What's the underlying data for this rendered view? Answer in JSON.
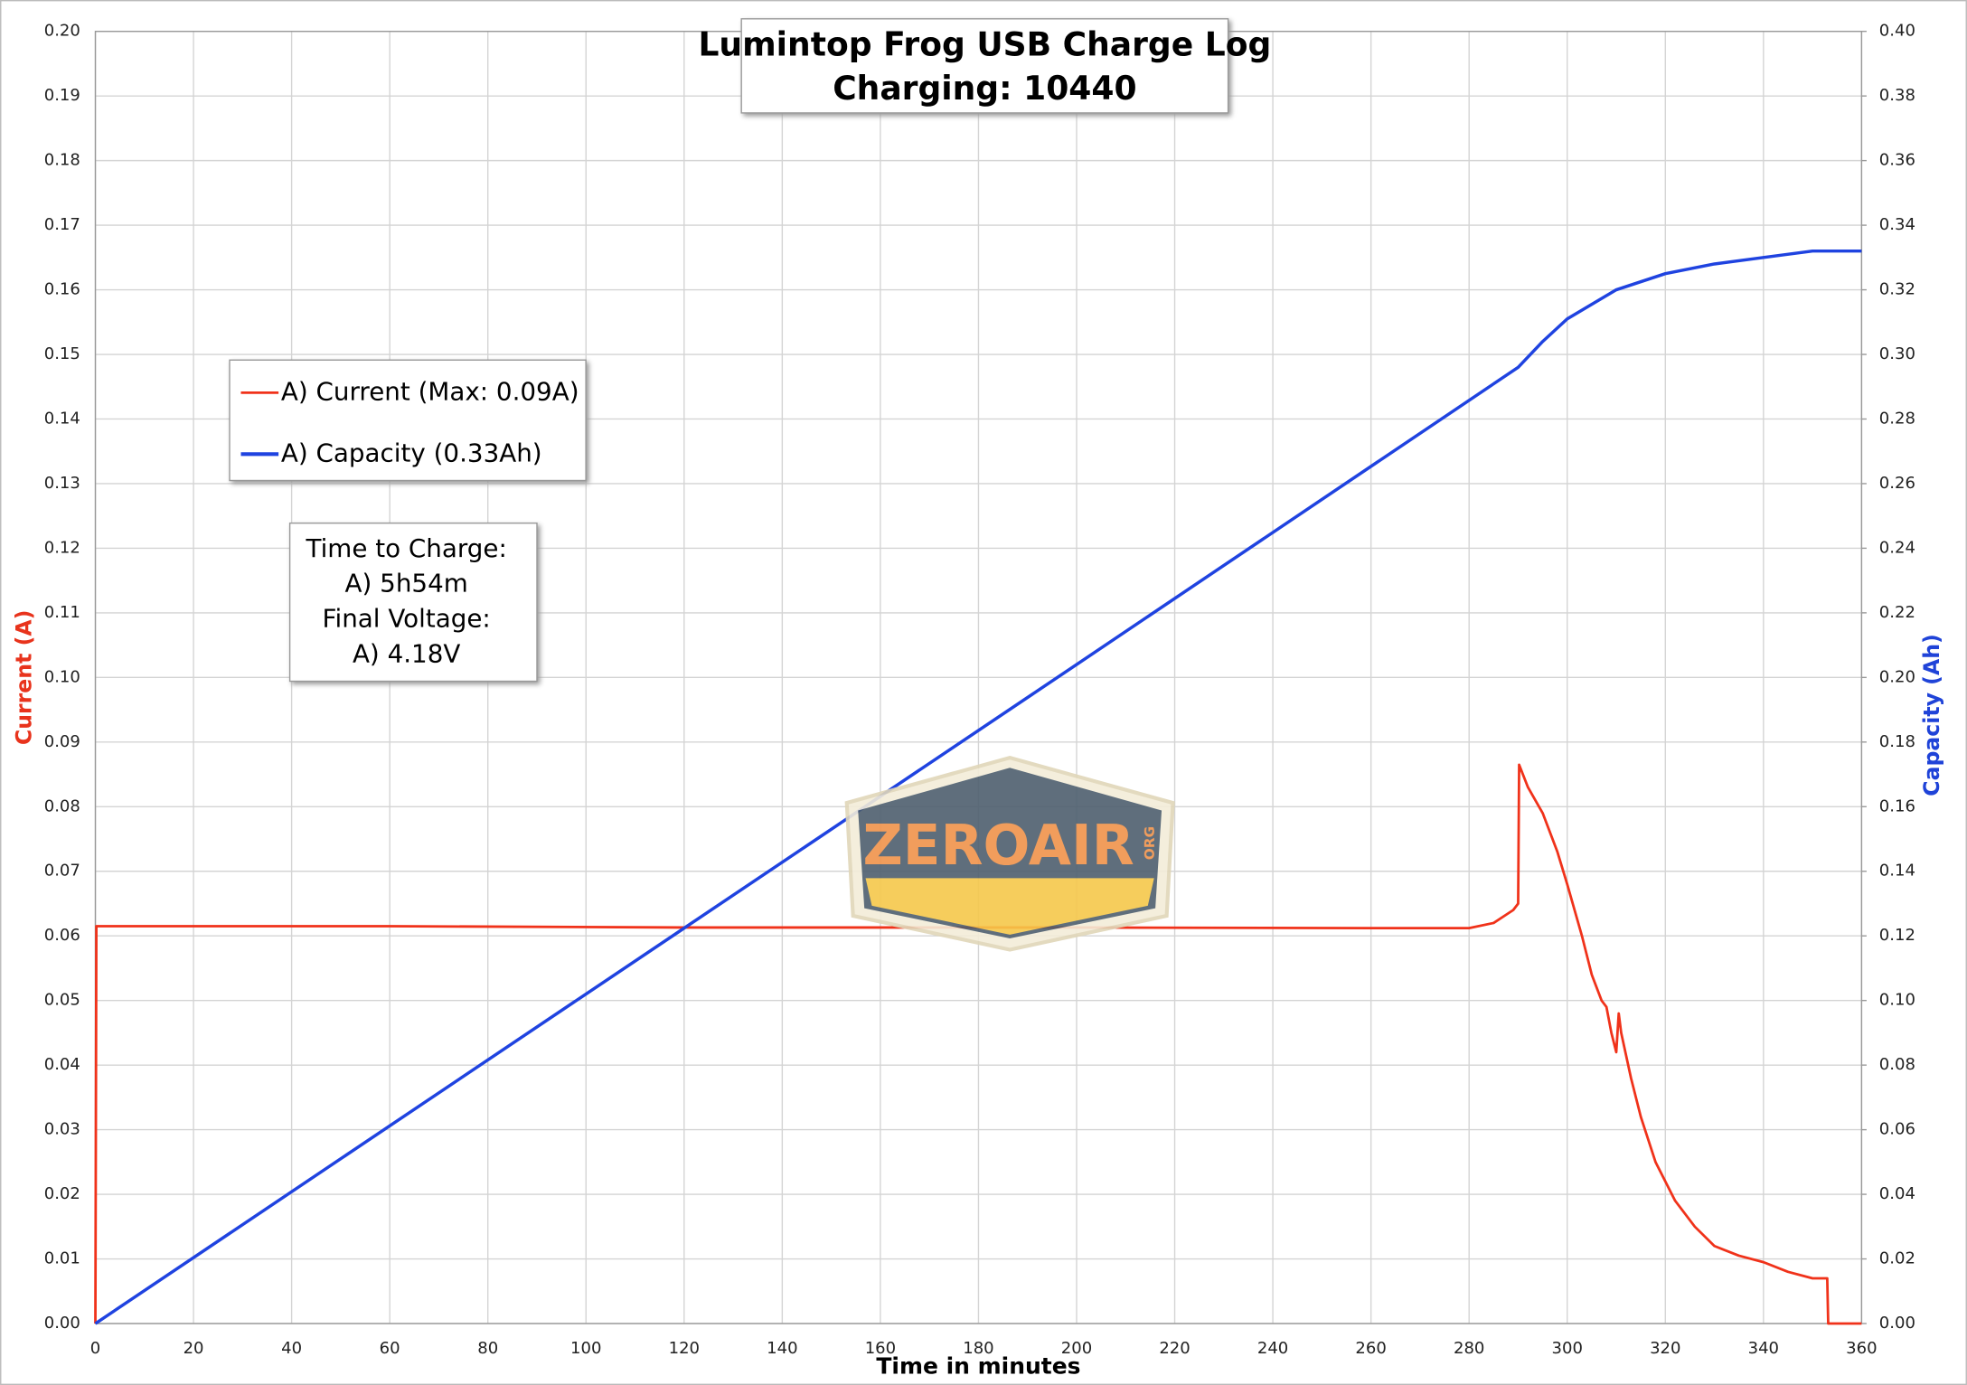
{
  "chart_data": {
    "type": "line",
    "title": "Lumintop Frog USB Charge Log",
    "subtitle": "Charging: 10440",
    "x_label": "Time in minutes",
    "y_label": "Current (A)",
    "y2_label": "Capacity (Ah)",
    "xlim": [
      0,
      360
    ],
    "xticks": [
      0,
      20,
      40,
      60,
      80,
      100,
      120,
      140,
      160,
      180,
      200,
      220,
      240,
      260,
      280,
      300,
      320,
      340,
      360
    ],
    "ylim": [
      0,
      0.2
    ],
    "yticks": [
      {
        "value": 0,
        "label": "0.00"
      },
      {
        "value": 0.01,
        "label": "0.01"
      },
      {
        "value": 0.02,
        "label": "0.02"
      },
      {
        "value": 0.03,
        "label": "0.03"
      },
      {
        "value": 0.04,
        "label": "0.04"
      },
      {
        "value": 0.05,
        "label": "0.05"
      },
      {
        "value": 0.06,
        "label": "0.06"
      },
      {
        "value": 0.07,
        "label": "0.07"
      },
      {
        "value": 0.08,
        "label": "0.08"
      },
      {
        "value": 0.09,
        "label": "0.09"
      },
      {
        "value": 0.1,
        "label": "0.10"
      },
      {
        "value": 0.11,
        "label": "0.11"
      },
      {
        "value": 0.12,
        "label": "0.12"
      },
      {
        "value": 0.13,
        "label": "0.13"
      },
      {
        "value": 0.14,
        "label": "0.14"
      },
      {
        "value": 0.15,
        "label": "0.15"
      },
      {
        "value": 0.16,
        "label": "0.16"
      },
      {
        "value": 0.17,
        "label": "0.17"
      },
      {
        "value": 0.18,
        "label": "0.18"
      },
      {
        "value": 0.19,
        "label": "0.19"
      },
      {
        "value": 0.2,
        "label": "0.20"
      }
    ],
    "y2lim": [
      0,
      0.4
    ],
    "y2ticks": [
      {
        "value": 0,
        "label": "0.00"
      },
      {
        "value": 0.02,
        "label": "0.02"
      },
      {
        "value": 0.04,
        "label": "0.04"
      },
      {
        "value": 0.06,
        "label": "0.06"
      },
      {
        "value": 0.08,
        "label": "0.08"
      },
      {
        "value": 0.1,
        "label": "0.10"
      },
      {
        "value": 0.12,
        "label": "0.12"
      },
      {
        "value": 0.14,
        "label": "0.14"
      },
      {
        "value": 0.16,
        "label": "0.16"
      },
      {
        "value": 0.18,
        "label": "0.18"
      },
      {
        "value": 0.2,
        "label": "0.20"
      },
      {
        "value": 0.22,
        "label": "0.22"
      },
      {
        "value": 0.24,
        "label": "0.24"
      },
      {
        "value": 0.26,
        "label": "0.26"
      },
      {
        "value": 0.28,
        "label": "0.28"
      },
      {
        "value": 0.3,
        "label": "0.30"
      },
      {
        "value": 0.32,
        "label": "0.32"
      },
      {
        "value": 0.34,
        "label": "0.34"
      },
      {
        "value": 0.36,
        "label": "0.36"
      },
      {
        "value": 0.38,
        "label": "0.38"
      },
      {
        "value": 0.4,
        "label": "0.40"
      }
    ],
    "grid": true,
    "y_label_color": "#e8331c",
    "y2_label_color": "#1f43d8",
    "series": [
      {
        "name": "A) Current (Max: 0.09A)",
        "color": "#f0321a",
        "axis": "y",
        "x": [
          0,
          0.2,
          60,
          120,
          200,
          260,
          280,
          285,
          289,
          290,
          290.2,
          292,
          295,
          298,
          300,
          303,
          305,
          307,
          308,
          309,
          310,
          310.5,
          311,
          313,
          315,
          318,
          322,
          326,
          330,
          335,
          340,
          345,
          350,
          353,
          353.2,
          360
        ],
        "values": [
          0,
          0.0615,
          0.0615,
          0.0613,
          0.0613,
          0.0612,
          0.0612,
          0.062,
          0.064,
          0.065,
          0.0865,
          0.083,
          0.079,
          0.073,
          0.068,
          0.06,
          0.054,
          0.05,
          0.049,
          0.045,
          0.042,
          0.048,
          0.045,
          0.038,
          0.032,
          0.025,
          0.019,
          0.015,
          0.012,
          0.0105,
          0.0095,
          0.008,
          0.007,
          0.007,
          0,
          0
        ]
      },
      {
        "name": "A) Capacity (0.33Ah)",
        "color": "#1f43e0",
        "axis": "y2",
        "x": [
          0,
          100,
          200,
          290,
          295,
          300,
          310,
          320,
          330,
          340,
          350,
          353,
          360
        ],
        "values": [
          0,
          0.102,
          0.204,
          0.296,
          0.304,
          0.311,
          0.32,
          0.325,
          0.328,
          0.33,
          0.332,
          0.332,
          0.332
        ]
      }
    ],
    "annotation": [
      "Time to Charge:",
      "A) 5h54m",
      "Final Voltage:",
      "A) 4.18V"
    ],
    "watermark": {
      "text": "ZEROAIR",
      "suffix": "ORG"
    }
  }
}
